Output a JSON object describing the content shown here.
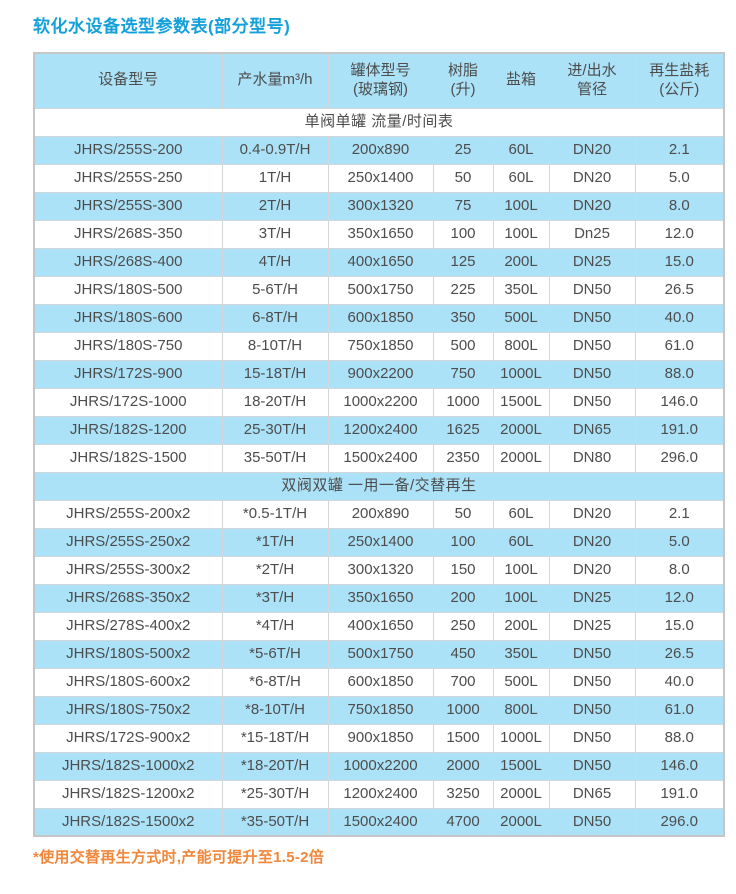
{
  "page": {
    "title": "软化水设备选型参数表(部分型号)",
    "footnote": "*使用交替再生方式时,产能可提升至1.5-2倍"
  },
  "colors": {
    "title_blue": "#14a0da",
    "stripe_blue": "#abe2f7",
    "footnote_orange": "#f0873b",
    "border_gray": "#c6c6c6",
    "text_gray": "#4d4d4d"
  },
  "table": {
    "headers": [
      "设备型号",
      "产水量m³/h",
      "罐体型号\n(玻璃钢)",
      "树脂\n(升)",
      "盐箱",
      "进/出水\n管径",
      "再生盐耗\n(公斤)"
    ],
    "sections": [
      {
        "label": "单阀单罐 流量/时间表",
        "label_bg": "white",
        "stripe_start": "blue",
        "rows": [
          [
            "JHRS/255S-200",
            "0.4-0.9T/H",
            "200x890",
            "25",
            "60L",
            "DN20",
            "2.1"
          ],
          [
            "JHRS/255S-250",
            "1T/H",
            "250x1400",
            "50",
            "60L",
            "DN20",
            "5.0"
          ],
          [
            "JHRS/255S-300",
            "2T/H",
            "300x1320",
            "75",
            "100L",
            "DN20",
            "8.0"
          ],
          [
            "JHRS/268S-350",
            "3T/H",
            "350x1650",
            "100",
            "100L",
            "Dn25",
            "12.0"
          ],
          [
            "JHRS/268S-400",
            "4T/H",
            "400x1650",
            "125",
            "200L",
            "DN25",
            "15.0"
          ],
          [
            "JHRS/180S-500",
            "5-6T/H",
            "500x1750",
            "225",
            "350L",
            "DN50",
            "26.5"
          ],
          [
            "JHRS/180S-600",
            "6-8T/H",
            "600x1850",
            "350",
            "500L",
            "DN50",
            "40.0"
          ],
          [
            "JHRS/180S-750",
            "8-10T/H",
            "750x1850",
            "500",
            "800L",
            "DN50",
            "61.0"
          ],
          [
            "JHRS/172S-900",
            "15-18T/H",
            "900x2200",
            "750",
            "1000L",
            "DN50",
            "88.0"
          ],
          [
            "JHRS/172S-1000",
            "18-20T/H",
            "1000x2200",
            "1000",
            "1500L",
            "DN50",
            "146.0"
          ],
          [
            "JHRS/182S-1200",
            "25-30T/H",
            "1200x2400",
            "1625",
            "2000L",
            "DN65",
            "191.0"
          ],
          [
            "JHRS/182S-1500",
            "35-50T/H",
            "1500x2400",
            "2350",
            "2000L",
            "DN80",
            "296.0"
          ]
        ]
      },
      {
        "label": "双阀双罐 一用一备/交替再生",
        "label_bg": "blue",
        "stripe_start": "white",
        "rows": [
          [
            "JHRS/255S-200x2",
            "*0.5-1T/H",
            "200x890",
            "50",
            "60L",
            "DN20",
            "2.1"
          ],
          [
            "JHRS/255S-250x2",
            "*1T/H",
            "250x1400",
            "100",
            "60L",
            "DN20",
            "5.0"
          ],
          [
            "JHRS/255S-300x2",
            "*2T/H",
            "300x1320",
            "150",
            "100L",
            "DN20",
            "8.0"
          ],
          [
            "JHRS/268S-350x2",
            "*3T/H",
            "350x1650",
            "200",
            "100L",
            "DN25",
            "12.0"
          ],
          [
            "JHRS/278S-400x2",
            "*4T/H",
            "400x1650",
            "250",
            "200L",
            "DN25",
            "15.0"
          ],
          [
            "JHRS/180S-500x2",
            "*5-6T/H",
            "500x1750",
            "450",
            "350L",
            "DN50",
            "26.5"
          ],
          [
            "JHRS/180S-600x2",
            "*6-8T/H",
            "600x1850",
            "700",
            "500L",
            "DN50",
            "40.0"
          ],
          [
            "JHRS/180S-750x2",
            "*8-10T/H",
            "750x1850",
            "1000",
            "800L",
            "DN50",
            "61.0"
          ],
          [
            "JHRS/172S-900x2",
            "*15-18T/H",
            "900x1850",
            "1500",
            "1000L",
            "DN50",
            "88.0"
          ],
          [
            "JHRS/182S-1000x2",
            "*18-20T/H",
            "1000x2200",
            "2000",
            "1500L",
            "DN50",
            "146.0"
          ],
          [
            "JHRS/182S-1200x2",
            "*25-30T/H",
            "1200x2400",
            "3250",
            "2000L",
            "DN65",
            "191.0"
          ],
          [
            "JHRS/182S-1500x2",
            "*35-50T/H",
            "1500x2400",
            "4700",
            "2000L",
            "DN50",
            "296.0"
          ]
        ]
      }
    ]
  }
}
